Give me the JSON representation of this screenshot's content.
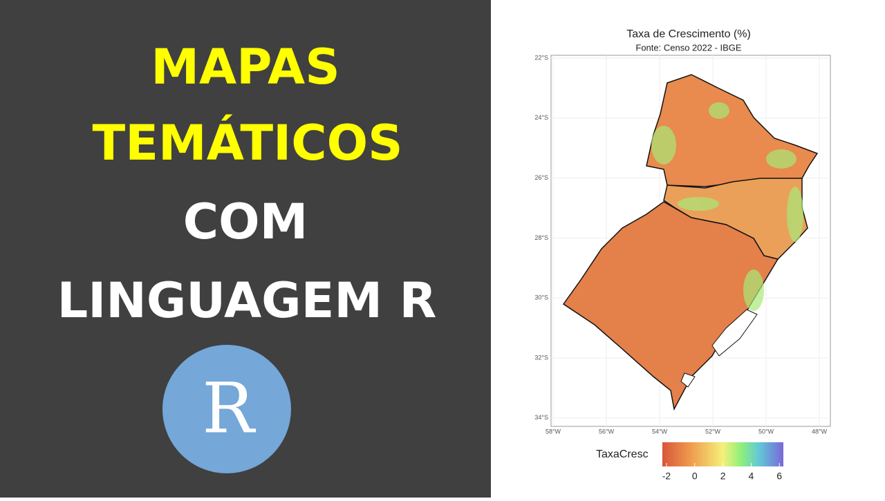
{
  "headline": {
    "lines": [
      "MAPAS",
      "TEMÁTICOS",
      "COM",
      "LINGUAGEM R"
    ],
    "logo": "R"
  },
  "map": {
    "title": "Taxa de Crescimento (%)",
    "subtitle": "Fonte: Censo 2022 - IBGE",
    "lat_labels": [
      "22°S",
      "24°S",
      "26°S",
      "28°S",
      "30°S",
      "32°S",
      "34°S"
    ],
    "lon_labels": [
      "58°W",
      "56°W",
      "54°W",
      "52°W",
      "50°W",
      "48°W"
    ],
    "legend": {
      "title": "TaxaCresc",
      "ticks": [
        "-2",
        "0",
        "2",
        "4",
        "6"
      ]
    }
  }
}
